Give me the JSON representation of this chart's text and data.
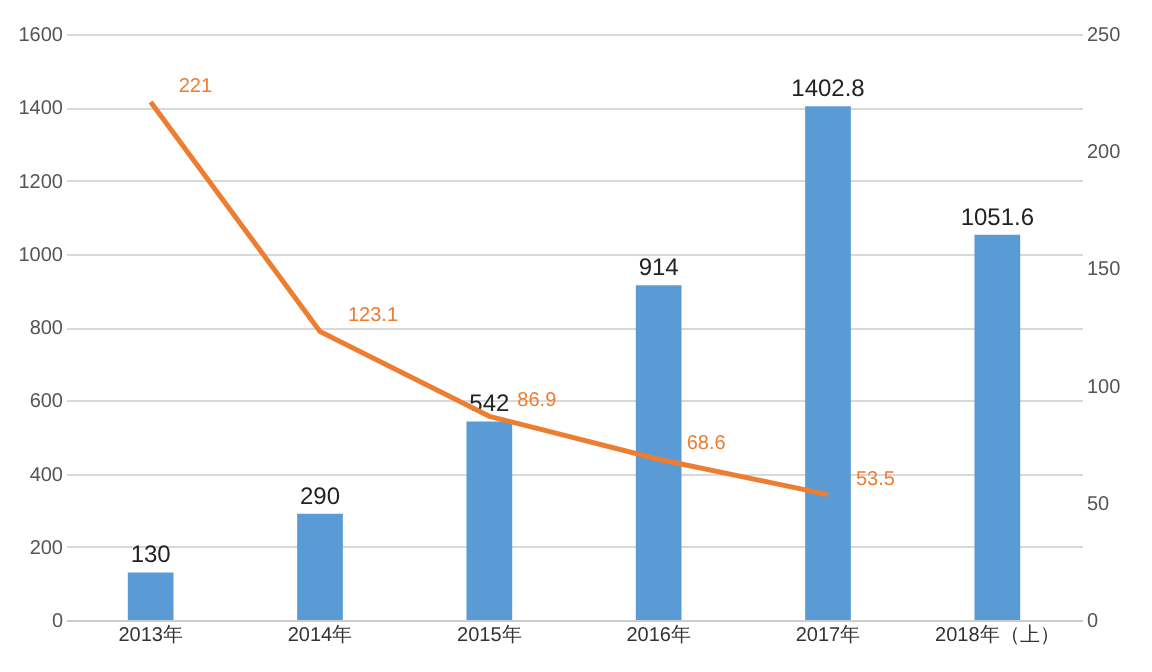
{
  "chart_data": {
    "type": "bar",
    "categories": [
      "2013年",
      "2014年",
      "2015年",
      "2016年",
      "2017年",
      "2018年（上）"
    ],
    "series": [
      {
        "color": "#5b9bd5",
        "values": [
          130,
          290,
          542,
          914,
          1402.8,
          1051.6
        ]
      },
      {
        "type": "line",
        "axis": "y2",
        "color": "#ed7d31",
        "values": [
          221,
          123.1,
          86.9,
          68.6,
          53.5,
          null
        ]
      }
    ],
    "ylim": [
      0,
      1600
    ],
    "yticks": [
      0,
      200,
      400,
      600,
      800,
      1000,
      1200,
      1400,
      1600
    ],
    "y2lim": [
      0,
      250
    ],
    "y2ticks": [
      0,
      50,
      100,
      150,
      200,
      250
    ],
    "grid": "y",
    "data_labels": true,
    "marker": "none",
    "line_style": "solid"
  }
}
